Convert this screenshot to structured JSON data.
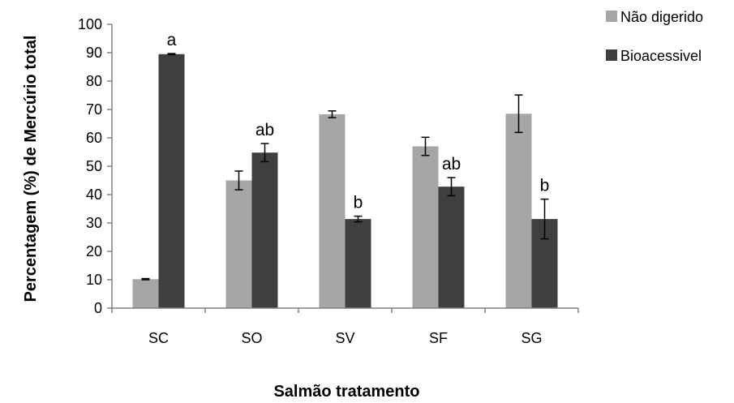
{
  "chart_data": {
    "type": "bar",
    "title": "",
    "xlabel": "Salmão tratamento",
    "ylabel": "Percentagem (%) de Mercúrio total",
    "ylim": [
      0,
      100
    ],
    "yticks": [
      0,
      10,
      20,
      30,
      40,
      50,
      60,
      70,
      80,
      90,
      100
    ],
    "categories": [
      "SC",
      "SO",
      "SV",
      "SF",
      "SG"
    ],
    "series": [
      {
        "name": "Não digerido",
        "color": "#a6a6a6",
        "values": [
          10.2,
          45,
          68.3,
          57,
          68.5
        ],
        "errors": [
          0.2,
          3.3,
          1.2,
          3.2,
          6.6
        ]
      },
      {
        "name": "Bioacessivel",
        "color": "#3f3f3f",
        "values": [
          89.5,
          54.8,
          31.4,
          42.8,
          31.4
        ],
        "errors": [
          0.2,
          3.2,
          1.0,
          3.2,
          7.0
        ]
      }
    ],
    "significance_labels": [
      "a",
      "ab",
      "b",
      "ab",
      "b"
    ],
    "legend": "top-right",
    "grid": false
  }
}
